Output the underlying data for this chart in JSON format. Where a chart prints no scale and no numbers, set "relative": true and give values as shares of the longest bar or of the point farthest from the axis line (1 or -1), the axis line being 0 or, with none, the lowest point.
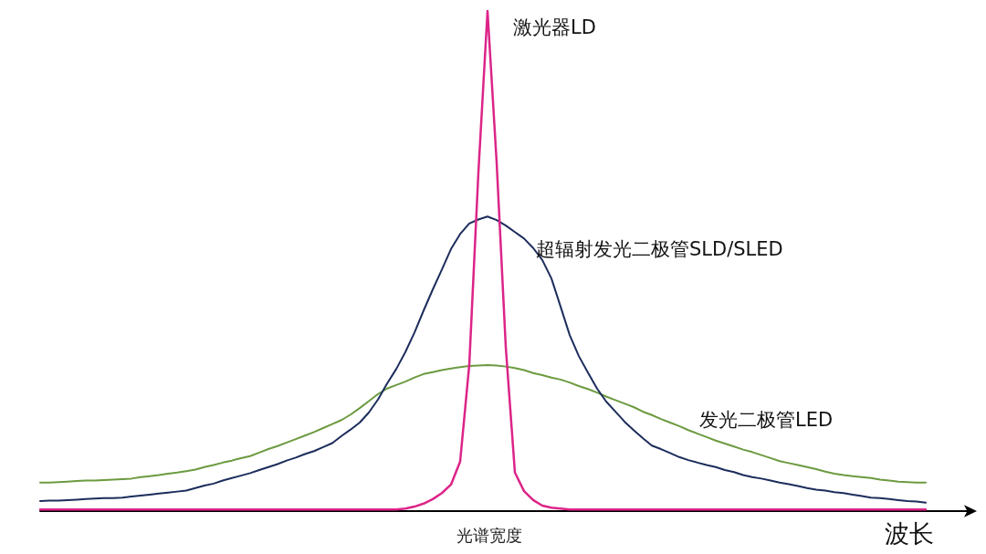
{
  "chart_data": {
    "type": "line",
    "xlabel": "波长",
    "relative": true,
    "legend": false,
    "marker": "none",
    "line_style": "solid",
    "annotations": [
      "光谱宽度"
    ],
    "categories": [
      null,
      null,
      null,
      null,
      null,
      null,
      null,
      null,
      null,
      null,
      null,
      null,
      null,
      null,
      null,
      null,
      null,
      null,
      null,
      null,
      null,
      null,
      null,
      null,
      null,
      null,
      null,
      null,
      null,
      null,
      null,
      null,
      null,
      null,
      null,
      null,
      null,
      null,
      null,
      null,
      null,
      null,
      null,
      null,
      null,
      null,
      null,
      null,
      null,
      null,
      null,
      null,
      null,
      null,
      null,
      null,
      null,
      null,
      null,
      null,
      null,
      null,
      null,
      null,
      null,
      null,
      null,
      null,
      null,
      null,
      null,
      null,
      null,
      null,
      null,
      null,
      null,
      null,
      null,
      null,
      null,
      null,
      null,
      null,
      null,
      null,
      null,
      null,
      null,
      null,
      null,
      null,
      null,
      null,
      null,
      null,
      null,
      null,
      null,
      null,
      null,
      null,
      null
    ],
    "series": [
      {
        "name": "激光器LD",
        "color": "#dc2488",
        "values": [
          0.003,
          0.003,
          0.003,
          0.003,
          0.003,
          0.003,
          0.003,
          0.003,
          0.003,
          0.003,
          0.003,
          0.003,
          0.003,
          0.003,
          0.003,
          0.003,
          0.003,
          0.003,
          0.003,
          0.003,
          0.003,
          0.003,
          0.003,
          0.003,
          0.003,
          0.003,
          0.003,
          0.003,
          0.003,
          0.003,
          0.003,
          0.003,
          0.003,
          0.003,
          0.003,
          0.003,
          0.003,
          0.003,
          0.003,
          0.003,
          0.005,
          0.009,
          0.015,
          0.024,
          0.036,
          0.053,
          0.099,
          0.292,
          0.677,
          1,
          0.697,
          0.328,
          0.077,
          0.04,
          0.022,
          0.011,
          0.007,
          0.005,
          0.003,
          0.003,
          0.003,
          0.003,
          0.003,
          0.003,
          0.003,
          0.003,
          0.003,
          0.003,
          0.003,
          0.003,
          0.003,
          0.003,
          0.003,
          0.003,
          0.003,
          0.003,
          0.003,
          0.003,
          0.003,
          0.003,
          0.003,
          0.003,
          0.003,
          0.003,
          0.003,
          0.003,
          0.003,
          0.003,
          0.003,
          0.003,
          0.003,
          0.003,
          0.003,
          0.003,
          0.003,
          0.003,
          0.003,
          0.003,
          null,
          null,
          null,
          null,
          null
        ]
      },
      {
        "name": "超辐射发光二极管SLD/SLED",
        "color": "#1c2d5c",
        "values": [
          0.02,
          0.021,
          0.021,
          0.022,
          0.023,
          0.024,
          0.025,
          0.026,
          0.026,
          0.027,
          0.029,
          0.031,
          0.033,
          0.035,
          0.037,
          0.039,
          0.041,
          0.046,
          0.051,
          0.055,
          0.061,
          0.066,
          0.071,
          0.076,
          0.082,
          0.088,
          0.094,
          0.101,
          0.107,
          0.114,
          0.12,
          0.128,
          0.136,
          0.15,
          0.163,
          0.177,
          0.197,
          0.223,
          0.255,
          0.284,
          0.318,
          0.357,
          0.401,
          0.443,
          0.483,
          0.524,
          0.554,
          0.575,
          0.583,
          0.589,
          0.582,
          0.571,
          0.558,
          0.545,
          0.526,
          0.502,
          0.465,
          0.409,
          0.352,
          0.31,
          0.277,
          0.245,
          0.219,
          0.199,
          0.179,
          0.162,
          0.146,
          0.131,
          0.124,
          0.116,
          0.108,
          0.102,
          0.097,
          0.092,
          0.088,
          0.082,
          0.078,
          0.072,
          0.068,
          0.065,
          0.061,
          0.057,
          0.054,
          0.05,
          0.046,
          0.043,
          0.041,
          0.038,
          0.036,
          0.033,
          0.03,
          0.027,
          0.026,
          0.024,
          0.022,
          0.02,
          0.019,
          0.017,
          null,
          null,
          null,
          null,
          null
        ]
      },
      {
        "name": "发光二极管LED",
        "color": "#6c9a40",
        "values": [
          0.057,
          0.057,
          0.058,
          0.059,
          0.06,
          0.061,
          0.061,
          0.062,
          0.063,
          0.064,
          0.065,
          0.068,
          0.07,
          0.072,
          0.075,
          0.077,
          0.08,
          0.083,
          0.088,
          0.092,
          0.097,
          0.101,
          0.106,
          0.11,
          0.117,
          0.124,
          0.13,
          0.137,
          0.144,
          0.151,
          0.158,
          0.166,
          0.174,
          0.182,
          0.193,
          0.206,
          0.22,
          0.234,
          0.245,
          0.252,
          0.259,
          0.267,
          0.274,
          0.278,
          0.282,
          0.285,
          0.288,
          0.29,
          0.291,
          0.292,
          0.291,
          0.289,
          0.286,
          0.282,
          0.276,
          0.272,
          0.267,
          0.263,
          0.257,
          0.25,
          0.244,
          0.237,
          0.229,
          0.222,
          0.215,
          0.208,
          0.199,
          0.192,
          0.184,
          0.177,
          0.17,
          0.162,
          0.155,
          0.148,
          0.141,
          0.135,
          0.129,
          0.123,
          0.118,
          0.112,
          0.106,
          0.1,
          0.096,
          0.092,
          0.088,
          0.084,
          0.079,
          0.075,
          0.072,
          0.07,
          0.068,
          0.066,
          0.063,
          0.061,
          0.059,
          0.058,
          0.057,
          0.057,
          null,
          null,
          null,
          null,
          null
        ]
      }
    ]
  }
}
